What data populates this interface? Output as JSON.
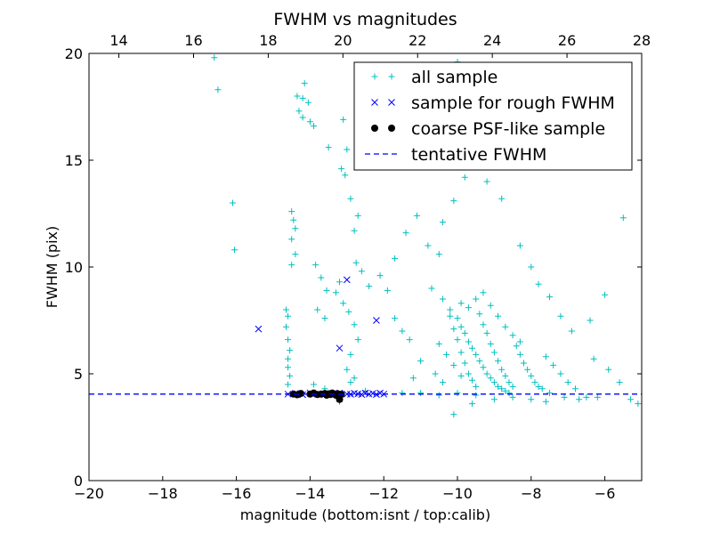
{
  "chart_data": {
    "type": "scatter",
    "title": "FWHM vs magnitudes",
    "xlabel": "magnitude (bottom:isnt / top:calib)",
    "ylabel": "FWHM (pix)",
    "xlim": [
      -20,
      -5
    ],
    "ylim": [
      0,
      20
    ],
    "top_xlim": [
      13.2,
      28.0
    ],
    "x_ticks": [
      -20,
      -18,
      -16,
      -14,
      -12,
      -10,
      -8,
      -6
    ],
    "x_tick_labels": [
      "−20",
      "−18",
      "−16",
      "−14",
      "−12",
      "−10",
      "−8",
      "−6"
    ],
    "y_ticks": [
      0,
      5,
      10,
      15,
      20
    ],
    "y_tick_labels": [
      "0",
      "5",
      "10",
      "15",
      "20"
    ],
    "top_x_ticks": [
      14,
      16,
      18,
      20,
      22,
      24,
      26,
      28
    ],
    "top_x_tick_labels": [
      "14",
      "16",
      "18",
      "20",
      "22",
      "24",
      "26",
      "28"
    ],
    "legend_position": "upper right",
    "colors": {
      "all_sample": "#00bfbf",
      "rough_fwhm": "#0000ff",
      "psf_like": "#000000",
      "tentative": "#0000ff"
    },
    "tentative_fwhm": 4.05,
    "series": [
      {
        "name": "all sample",
        "marker": "plus",
        "points": [
          [
            -16.6,
            19.8
          ],
          [
            -16.5,
            18.3
          ],
          [
            -16.1,
            13.0
          ],
          [
            -16.05,
            10.8
          ],
          [
            -14.5,
            12.6
          ],
          [
            -14.45,
            12.2
          ],
          [
            -14.4,
            11.8
          ],
          [
            -14.5,
            11.3
          ],
          [
            -14.4,
            10.6
          ],
          [
            -14.5,
            10.1
          ],
          [
            -14.65,
            8.0
          ],
          [
            -14.6,
            7.7
          ],
          [
            -14.65,
            7.2
          ],
          [
            -14.6,
            6.6
          ],
          [
            -14.55,
            6.1
          ],
          [
            -14.6,
            5.7
          ],
          [
            -14.6,
            5.3
          ],
          [
            -14.55,
            4.9
          ],
          [
            -14.6,
            4.5
          ],
          [
            -14.35,
            18.0
          ],
          [
            -14.2,
            17.9
          ],
          [
            -14.15,
            18.6
          ],
          [
            -14.05,
            17.7
          ],
          [
            -14.3,
            17.3
          ],
          [
            -14.2,
            17.0
          ],
          [
            -14.0,
            16.8
          ],
          [
            -13.9,
            16.6
          ],
          [
            -13.5,
            15.6
          ],
          [
            -13.1,
            16.9
          ],
          [
            -13.0,
            15.5
          ],
          [
            -13.15,
            14.6
          ],
          [
            -13.05,
            14.3
          ],
          [
            -12.9,
            13.2
          ],
          [
            -12.7,
            12.4
          ],
          [
            -12.8,
            11.7
          ],
          [
            -13.85,
            10.1
          ],
          [
            -13.7,
            9.5
          ],
          [
            -13.55,
            8.9
          ],
          [
            -13.8,
            8.0
          ],
          [
            -13.6,
            7.6
          ],
          [
            -13.3,
            8.8
          ],
          [
            -13.2,
            9.3
          ],
          [
            -13.1,
            8.3
          ],
          [
            -12.95,
            7.9
          ],
          [
            -12.8,
            7.3
          ],
          [
            -12.7,
            6.6
          ],
          [
            -12.9,
            5.9
          ],
          [
            -13.0,
            5.2
          ],
          [
            -12.8,
            4.8
          ],
          [
            -12.75,
            10.2
          ],
          [
            -12.6,
            9.8
          ],
          [
            -12.4,
            9.1
          ],
          [
            -12.1,
            9.6
          ],
          [
            -11.9,
            8.9
          ],
          [
            -11.7,
            7.6
          ],
          [
            -11.5,
            7.0
          ],
          [
            -11.3,
            6.6
          ],
          [
            -11.7,
            10.4
          ],
          [
            -11.4,
            11.6
          ],
          [
            -11.1,
            12.4
          ],
          [
            -10.8,
            11.0
          ],
          [
            -10.5,
            10.6
          ],
          [
            -10.4,
            12.1
          ],
          [
            -10.1,
            13.1
          ],
          [
            -9.8,
            14.2
          ],
          [
            -9.5,
            14.8
          ],
          [
            -9.3,
            15.3
          ],
          [
            -9.7,
            16.2
          ],
          [
            -10.0,
            19.6
          ],
          [
            -9.6,
            17.4
          ],
          [
            -9.2,
            14.0
          ],
          [
            -8.8,
            13.2
          ],
          [
            -8.3,
            11.0
          ],
          [
            -8.0,
            10.0
          ],
          [
            -7.8,
            9.2
          ],
          [
            -7.5,
            8.6
          ],
          [
            -7.2,
            7.7
          ],
          [
            -6.9,
            7.0
          ],
          [
            -6.4,
            7.5
          ],
          [
            -6.0,
            8.7
          ],
          [
            -5.5,
            12.3
          ],
          [
            -6.3,
            5.7
          ],
          [
            -5.9,
            5.2
          ],
          [
            -5.6,
            4.6
          ],
          [
            -5.3,
            3.8
          ],
          [
            -5.1,
            3.6
          ],
          [
            -10.7,
            9.0
          ],
          [
            -10.4,
            8.5
          ],
          [
            -10.2,
            8.0
          ],
          [
            -10.0,
            7.6
          ],
          [
            -9.9,
            7.2
          ],
          [
            -9.8,
            6.9
          ],
          [
            -9.7,
            6.5
          ],
          [
            -9.6,
            6.2
          ],
          [
            -9.5,
            5.9
          ],
          [
            -9.4,
            5.6
          ],
          [
            -9.3,
            5.3
          ],
          [
            -9.2,
            5.0
          ],
          [
            -9.1,
            4.8
          ],
          [
            -9.0,
            4.6
          ],
          [
            -8.9,
            4.4
          ],
          [
            -8.8,
            4.3
          ],
          [
            -8.7,
            4.2
          ],
          [
            -8.6,
            4.1
          ],
          [
            -10.2,
            7.7
          ],
          [
            -10.1,
            7.1
          ],
          [
            -10.0,
            6.6
          ],
          [
            -9.9,
            6.0
          ],
          [
            -9.8,
            5.5
          ],
          [
            -9.7,
            5.0
          ],
          [
            -9.6,
            4.7
          ],
          [
            -9.5,
            4.4
          ],
          [
            -9.4,
            7.8
          ],
          [
            -9.3,
            7.3
          ],
          [
            -9.2,
            6.9
          ],
          [
            -9.1,
            6.4
          ],
          [
            -9.0,
            6.0
          ],
          [
            -8.9,
            5.6
          ],
          [
            -8.8,
            5.2
          ],
          [
            -8.7,
            4.9
          ],
          [
            -8.6,
            4.6
          ],
          [
            -8.5,
            4.4
          ],
          [
            -8.4,
            6.3
          ],
          [
            -8.3,
            5.9
          ],
          [
            -8.2,
            5.5
          ],
          [
            -8.1,
            5.2
          ],
          [
            -8.0,
            4.9
          ],
          [
            -7.9,
            4.6
          ],
          [
            -7.8,
            4.4
          ],
          [
            -7.7,
            4.3
          ],
          [
            -9.9,
            8.3
          ],
          [
            -9.7,
            8.1
          ],
          [
            -9.5,
            8.5
          ],
          [
            -9.3,
            8.8
          ],
          [
            -9.1,
            8.2
          ],
          [
            -8.9,
            7.7
          ],
          [
            -8.7,
            7.2
          ],
          [
            -8.5,
            6.8
          ],
          [
            -8.3,
            6.5
          ],
          [
            -10.5,
            6.4
          ],
          [
            -10.3,
            5.9
          ],
          [
            -10.1,
            5.4
          ],
          [
            -9.9,
            4.9
          ],
          [
            -10.6,
            5.0
          ],
          [
            -10.4,
            4.6
          ],
          [
            -11.0,
            5.6
          ],
          [
            -11.2,
            4.8
          ],
          [
            -7.6,
            5.8
          ],
          [
            -7.4,
            5.4
          ],
          [
            -7.2,
            5.0
          ],
          [
            -7.0,
            4.6
          ],
          [
            -6.8,
            4.3
          ],
          [
            -7.5,
            4.1
          ],
          [
            -7.1,
            3.9
          ],
          [
            -6.7,
            3.8
          ],
          [
            -6.5,
            3.9
          ],
          [
            -6.2,
            3.9
          ],
          [
            -9.0,
            3.8
          ],
          [
            -8.5,
            3.9
          ],
          [
            -8.0,
            3.8
          ],
          [
            -7.6,
            3.7
          ],
          [
            -9.6,
            3.6
          ],
          [
            -10.1,
            3.1
          ],
          [
            -11.0,
            4.1
          ],
          [
            -11.5,
            4.1
          ],
          [
            -10.5,
            4.0
          ],
          [
            -10.0,
            4.1
          ],
          [
            -9.5,
            4.0
          ],
          [
            -13.6,
            4.3
          ],
          [
            -13.2,
            3.7
          ],
          [
            -12.9,
            4.6
          ],
          [
            -12.5,
            4.2
          ],
          [
            -13.9,
            4.5
          ]
        ]
      },
      {
        "name": "sample for rough FWHM",
        "marker": "x",
        "points": [
          [
            -15.4,
            7.1
          ],
          [
            -13.0,
            9.4
          ],
          [
            -13.2,
            6.2
          ],
          [
            -12.2,
            7.5
          ],
          [
            -14.6,
            4.05
          ],
          [
            -14.4,
            4.08
          ],
          [
            -14.2,
            4.02
          ],
          [
            -14.0,
            4.1
          ],
          [
            -13.8,
            4.05
          ],
          [
            -13.6,
            4.03
          ],
          [
            -13.4,
            4.07
          ],
          [
            -13.2,
            4.1
          ],
          [
            -13.0,
            4.05
          ],
          [
            -12.9,
            4.04
          ],
          [
            -12.8,
            4.09
          ],
          [
            -12.7,
            4.06
          ],
          [
            -12.6,
            4.03
          ],
          [
            -12.5,
            4.1
          ],
          [
            -12.4,
            4.05
          ],
          [
            -12.3,
            4.08
          ],
          [
            -12.2,
            4.03
          ],
          [
            -12.1,
            4.1
          ],
          [
            -12.0,
            4.05
          ]
        ]
      },
      {
        "name": "coarse PSF-like sample",
        "marker": "circle",
        "points": [
          [
            -14.45,
            4.05
          ],
          [
            -14.35,
            4.02
          ],
          [
            -14.25,
            4.08
          ],
          [
            -14.0,
            4.05
          ],
          [
            -13.9,
            4.1
          ],
          [
            -13.8,
            4.03
          ],
          [
            -13.7,
            4.05
          ],
          [
            -13.6,
            4.08
          ],
          [
            -13.55,
            4.0
          ],
          [
            -13.5,
            4.06
          ],
          [
            -13.45,
            4.03
          ],
          [
            -13.4,
            4.1
          ],
          [
            -13.35,
            4.05
          ],
          [
            -13.3,
            4.0
          ],
          [
            -13.25,
            4.07
          ],
          [
            -13.2,
            3.8
          ],
          [
            -13.15,
            4.04
          ]
        ]
      }
    ],
    "legend": [
      {
        "label": "all sample",
        "marker": "plus"
      },
      {
        "label": "sample for rough FWHM",
        "marker": "x"
      },
      {
        "label": "coarse PSF-like sample",
        "marker": "circle"
      },
      {
        "label": "tentative FWHM",
        "marker": "dashed-line"
      }
    ]
  }
}
